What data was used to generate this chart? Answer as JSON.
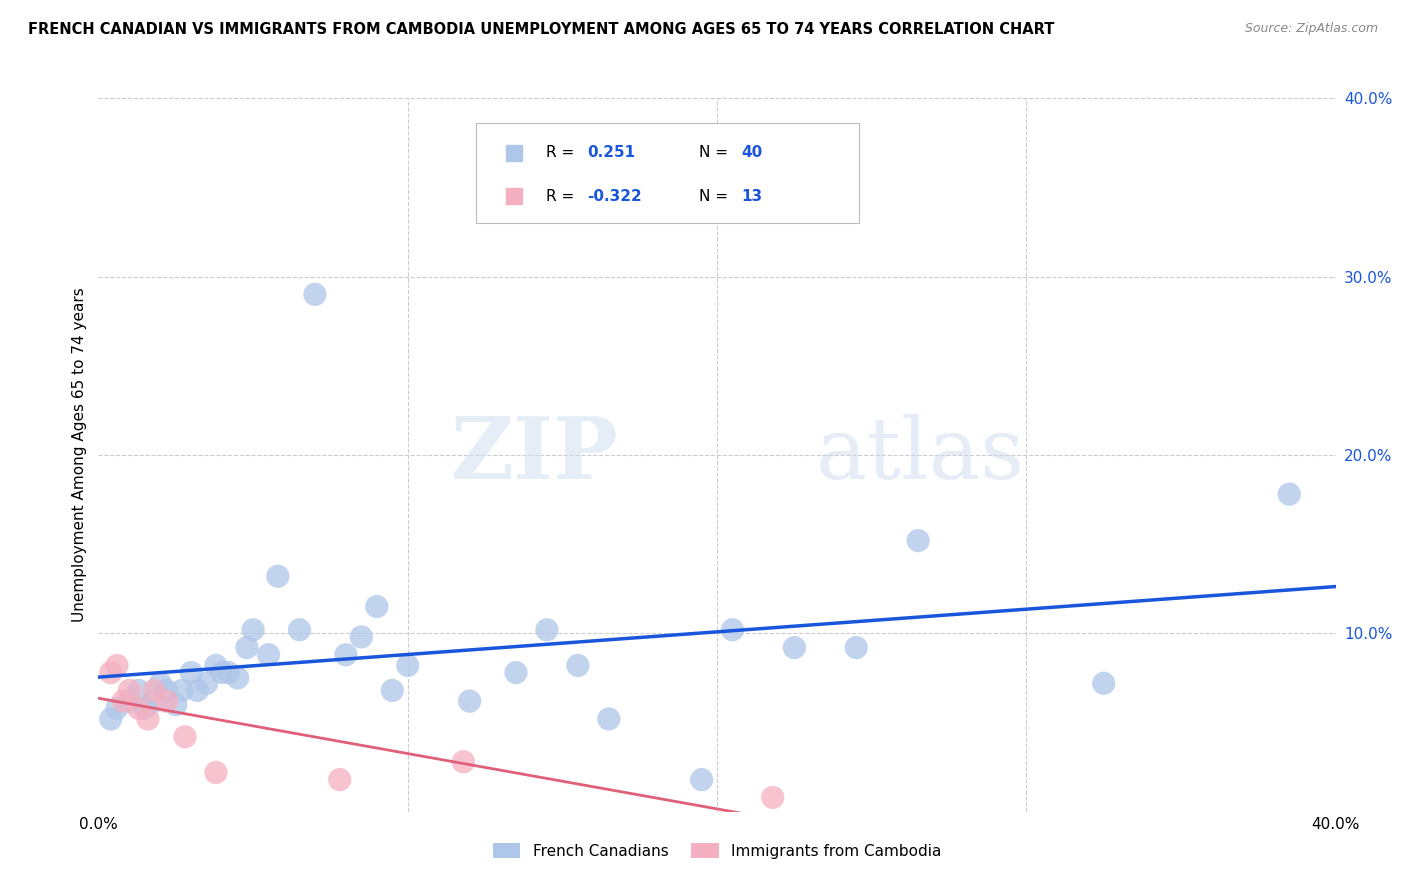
{
  "title": "FRENCH CANADIAN VS IMMIGRANTS FROM CAMBODIA UNEMPLOYMENT AMONG AGES 65 TO 74 YEARS CORRELATION CHART",
  "source": "Source: ZipAtlas.com",
  "ylabel": "Unemployment Among Ages 65 to 74 years",
  "xlim": [
    0.0,
    0.4
  ],
  "ylim": [
    0.0,
    0.4
  ],
  "blue_R": 0.251,
  "blue_N": 40,
  "pink_R": -0.322,
  "pink_N": 13,
  "blue_color": "#aec6e8",
  "blue_line_color": "#1a56db",
  "pink_color": "#f4afc0",
  "pink_line_color": "#e0607a",
  "background_color": "#ffffff",
  "grid_color": "#cccccc",
  "watermark_zip": "ZIP",
  "watermark_atlas": "atlas",
  "legend1_label": "French Canadians",
  "legend2_label": "Immigrants from Cambodia",
  "blue_x": [
    0.004,
    0.006,
    0.01,
    0.013,
    0.015,
    0.018,
    0.02,
    0.022,
    0.025,
    0.027,
    0.03,
    0.032,
    0.035,
    0.038,
    0.04,
    0.042,
    0.045,
    0.048,
    0.05,
    0.055,
    0.058,
    0.065,
    0.07,
    0.08,
    0.085,
    0.09,
    0.095,
    0.1,
    0.12,
    0.135,
    0.145,
    0.155,
    0.165,
    0.195,
    0.205,
    0.225,
    0.245,
    0.265,
    0.325,
    0.385
  ],
  "blue_y": [
    0.052,
    0.058,
    0.062,
    0.068,
    0.058,
    0.062,
    0.072,
    0.068,
    0.06,
    0.068,
    0.078,
    0.068,
    0.072,
    0.082,
    0.078,
    0.078,
    0.075,
    0.092,
    0.102,
    0.088,
    0.132,
    0.102,
    0.29,
    0.088,
    0.098,
    0.115,
    0.068,
    0.082,
    0.062,
    0.078,
    0.102,
    0.082,
    0.052,
    0.018,
    0.102,
    0.092,
    0.092,
    0.152,
    0.072,
    0.178
  ],
  "pink_x": [
    0.004,
    0.006,
    0.008,
    0.01,
    0.013,
    0.016,
    0.018,
    0.022,
    0.028,
    0.038,
    0.078,
    0.118,
    0.218
  ],
  "pink_y": [
    0.078,
    0.082,
    0.062,
    0.068,
    0.058,
    0.052,
    0.068,
    0.062,
    0.042,
    0.022,
    0.018,
    0.028,
    0.008
  ]
}
